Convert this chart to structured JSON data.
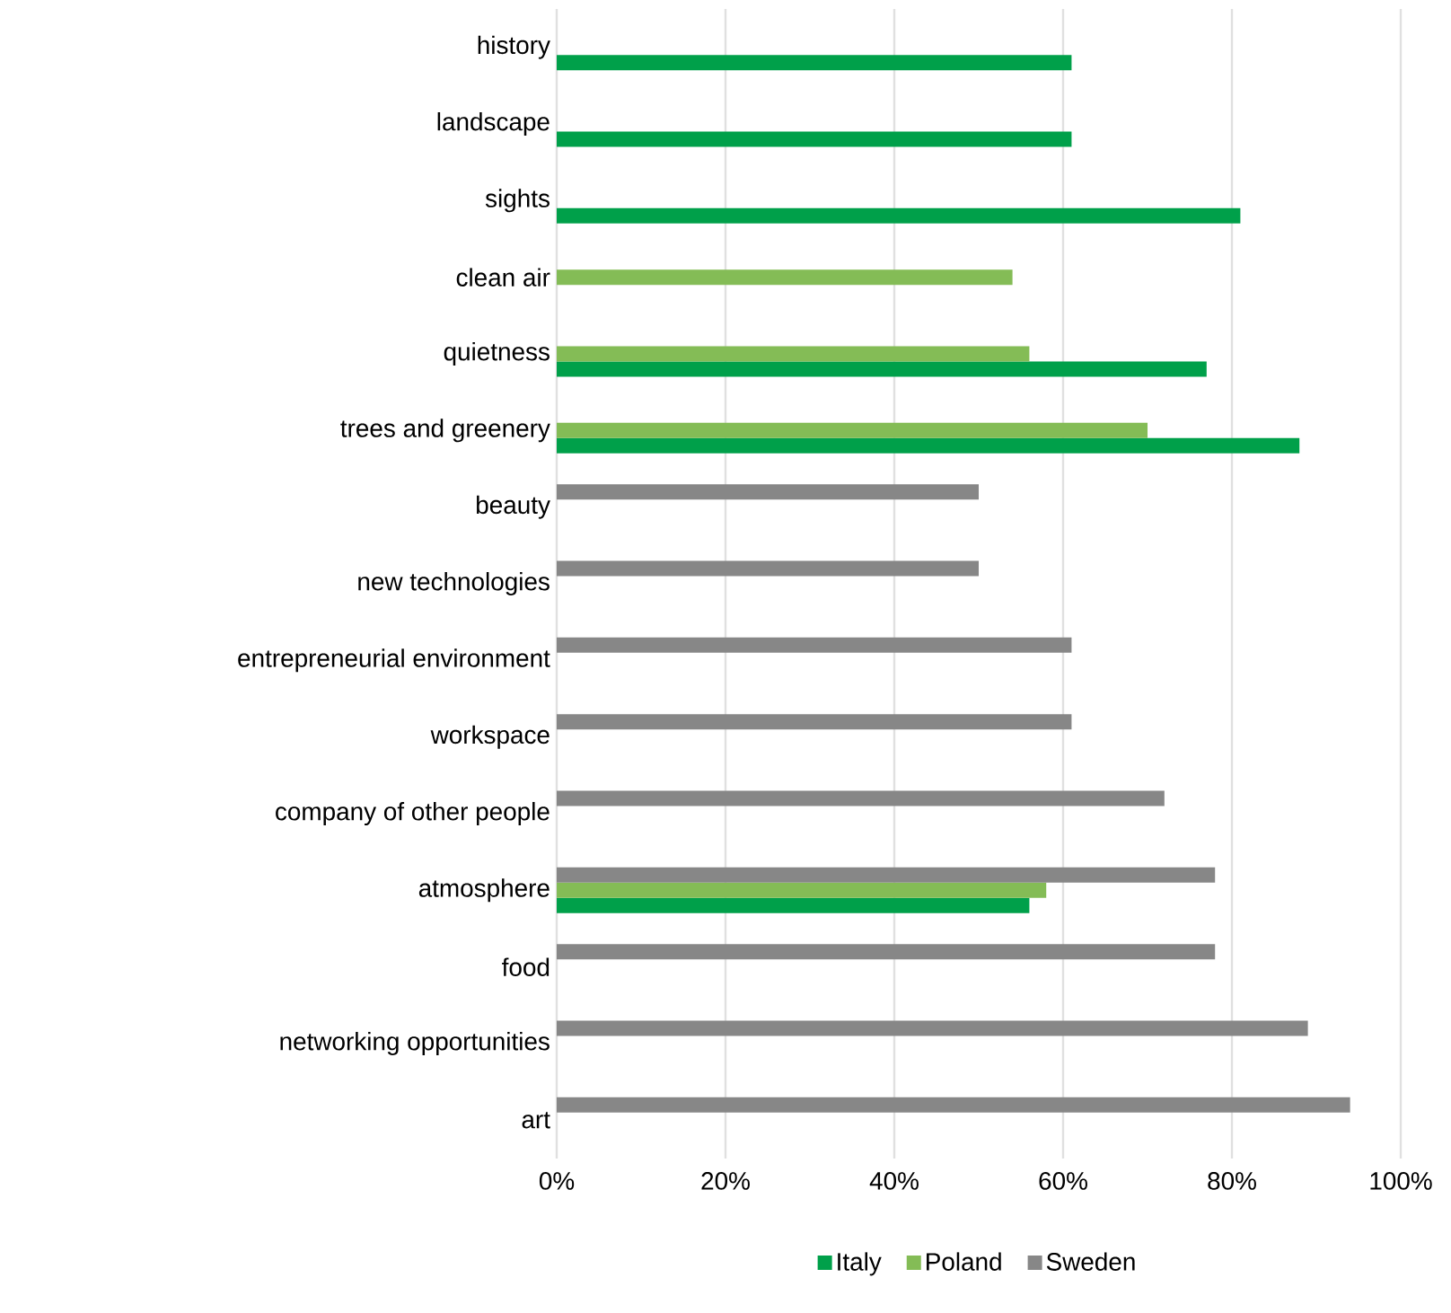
{
  "chart_data": {
    "type": "bar",
    "orientation": "horizontal",
    "categories": [
      "history",
      "landscape",
      "sights",
      "clean air",
      "quietness",
      "trees and greenery",
      "beauty",
      "new technologies",
      "entrepreneurial environment",
      "workspace",
      "company of other people",
      "atmosphere",
      "food",
      "networking opportunities",
      "art"
    ],
    "series": [
      {
        "name": "Italy",
        "color": "#00a04a",
        "values": [
          61,
          61,
          81,
          null,
          77,
          88,
          null,
          null,
          null,
          null,
          null,
          56,
          null,
          null,
          null
        ]
      },
      {
        "name": "Poland",
        "color": "#84bc56",
        "values": [
          null,
          null,
          null,
          54,
          56,
          70,
          null,
          null,
          null,
          null,
          null,
          58,
          null,
          null,
          null
        ]
      },
      {
        "name": "Sweden",
        "color": "#878787",
        "values": [
          null,
          null,
          null,
          null,
          null,
          null,
          50,
          50,
          61,
          61,
          72,
          78,
          78,
          89,
          94
        ]
      }
    ],
    "xlim": [
      0,
      100
    ],
    "xticks": [
      {
        "value": 0,
        "label": "0%"
      },
      {
        "value": 20,
        "label": "20%"
      },
      {
        "value": 40,
        "label": "40%"
      },
      {
        "value": 60,
        "label": "60%"
      },
      {
        "value": 80,
        "label": "80%"
      },
      {
        "value": 100,
        "label": "100%"
      }
    ],
    "grid": "x",
    "legend": "bottom"
  }
}
